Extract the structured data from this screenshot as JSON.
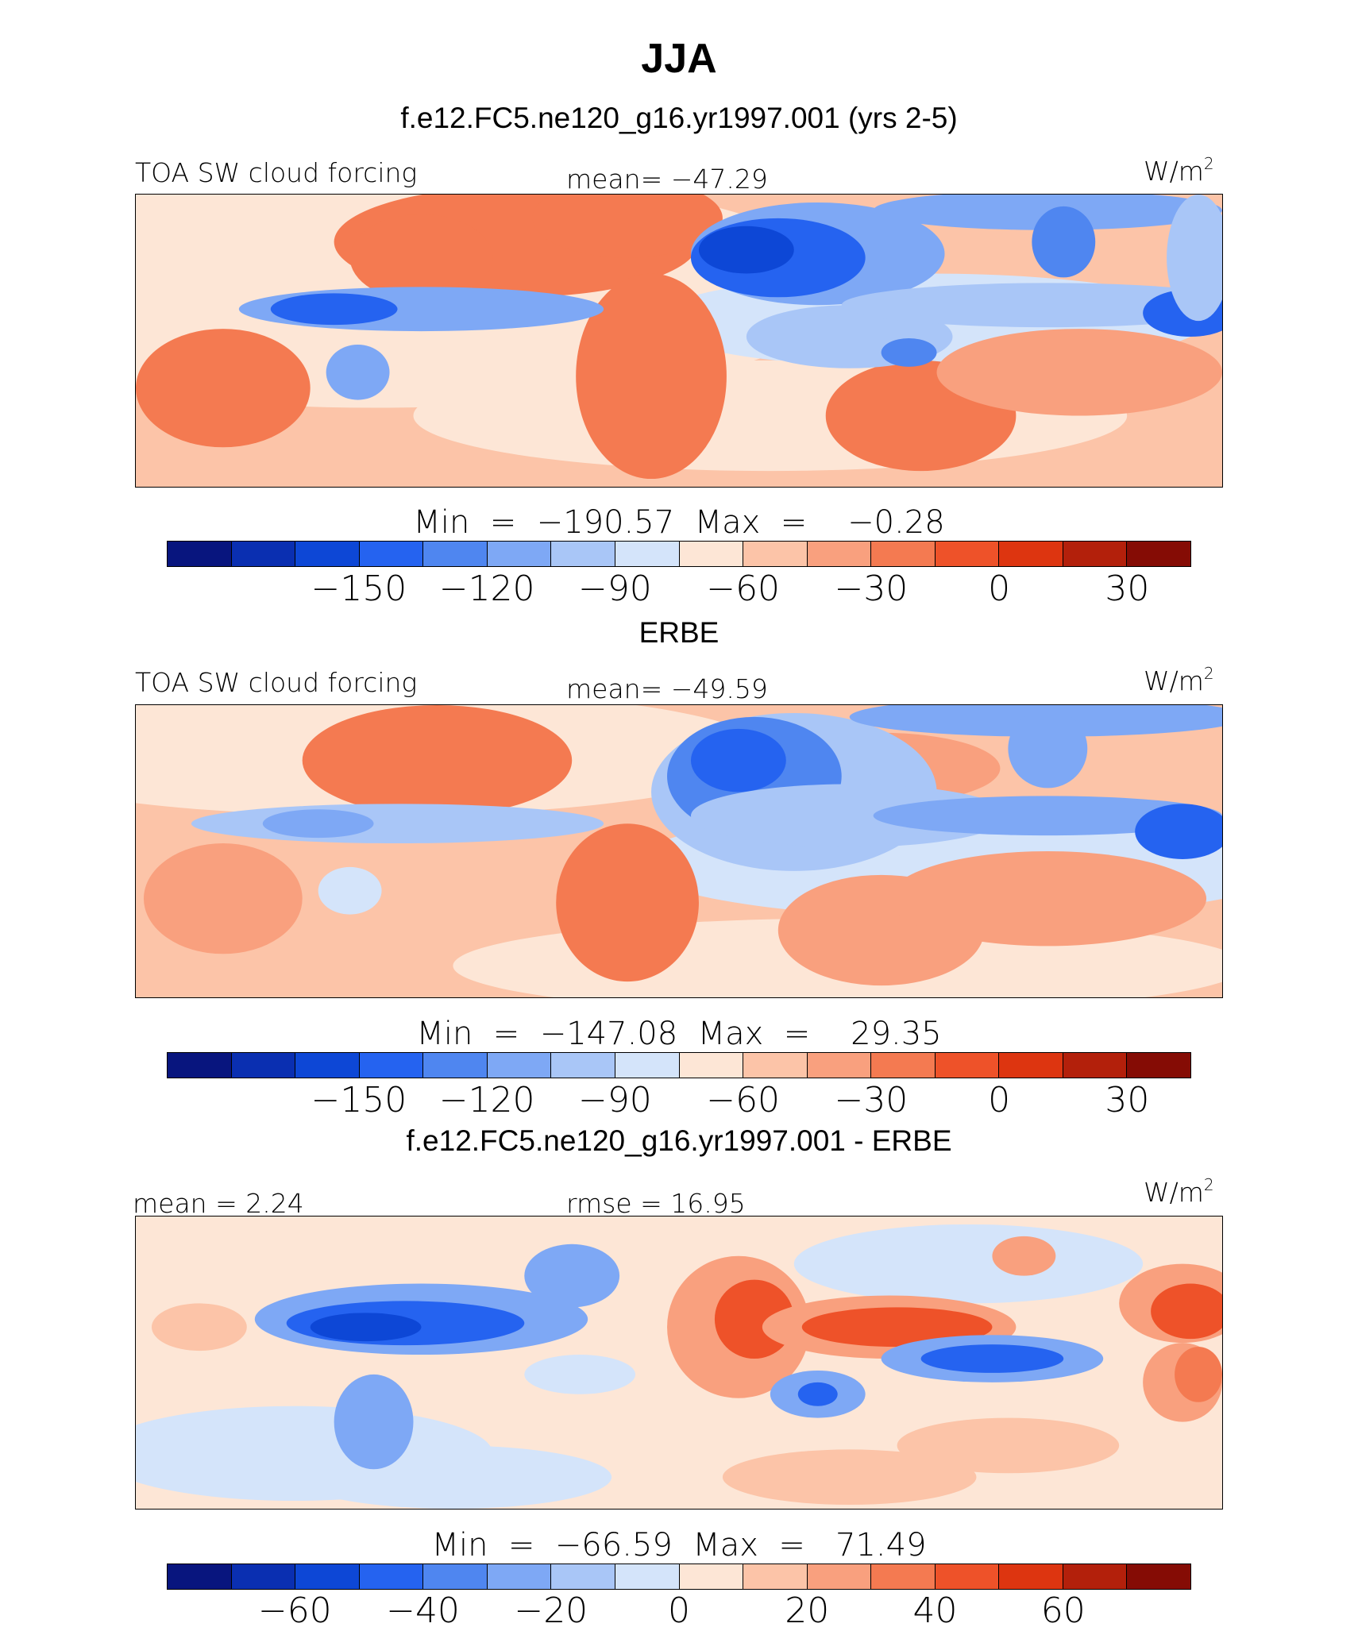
{
  "title": "JJA",
  "subtitle": "f.e12.FC5.ne120_g16.yr1997.001 (yrs 2-5)",
  "colors": [
    "#08157e",
    "#0a2fb1",
    "#0d47d6",
    "#2563f0",
    "#4f86f0",
    "#7ea8f5",
    "#a9c6f7",
    "#d4e4fa",
    "#fde6d6",
    "#fcc4a8",
    "#f9a07e",
    "#f47a51",
    "#ee5229",
    "#dd3510",
    "#b3200b",
    "#850c05"
  ],
  "chart_data": [
    {
      "type": "heatmap",
      "title": "",
      "left_label": "TOA SW cloud forcing",
      "center_label": "mean= −47.29",
      "units": "W/m",
      "units_sup": "2",
      "minmax": "Min  =  −190.57  Max  =    −0.28",
      "min": -190.57,
      "max": -0.28,
      "mean": -47.29,
      "levels": [
        -180,
        -165,
        -150,
        -135,
        -120,
        -105,
        -90,
        -75,
        -60,
        -45,
        -30,
        -15,
        0,
        15,
        30
      ],
      "tick_labels": [
        "−150",
        "−120",
        "−90",
        "−60",
        "−30",
        "0",
        "30"
      ],
      "tick_values": [
        -150,
        -120,
        -90,
        -60,
        -30,
        0,
        30
      ]
    },
    {
      "type": "heatmap",
      "title": "ERBE",
      "left_label": "TOA SW cloud forcing",
      "center_label": "mean= −49.59",
      "units": "W/m",
      "units_sup": "2",
      "minmax": "Min  =  −147.08  Max  =    29.35",
      "min": -147.08,
      "max": 29.35,
      "mean": -49.59,
      "levels": [
        -180,
        -165,
        -150,
        -135,
        -120,
        -105,
        -90,
        -75,
        -60,
        -45,
        -30,
        -15,
        0,
        15,
        30
      ],
      "tick_labels": [
        "−150",
        "−120",
        "−90",
        "−60",
        "−30",
        "0",
        "30"
      ],
      "tick_values": [
        -150,
        -120,
        -90,
        -60,
        -30,
        0,
        30
      ]
    },
    {
      "type": "heatmap",
      "title": "f.e12.FC5.ne120_g16.yr1997.001 - ERBE",
      "left_label": "mean =   2.24",
      "center_label": "rmse  =   16.95",
      "units": "W/m",
      "units_sup": "2",
      "minmax": "Min  =  −66.59  Max  =   71.49",
      "min": -66.59,
      "max": 71.49,
      "mean": 2.24,
      "rmse": 16.95,
      "levels": [
        -70,
        -60,
        -50,
        -40,
        -30,
        -20,
        -10,
        0,
        10,
        20,
        30,
        40,
        50,
        60,
        70
      ],
      "tick_labels": [
        "−60",
        "−40",
        "−20",
        "0",
        "20",
        "40",
        "60"
      ],
      "tick_values": [
        -60,
        -40,
        -20,
        0,
        20,
        40,
        60
      ]
    }
  ]
}
